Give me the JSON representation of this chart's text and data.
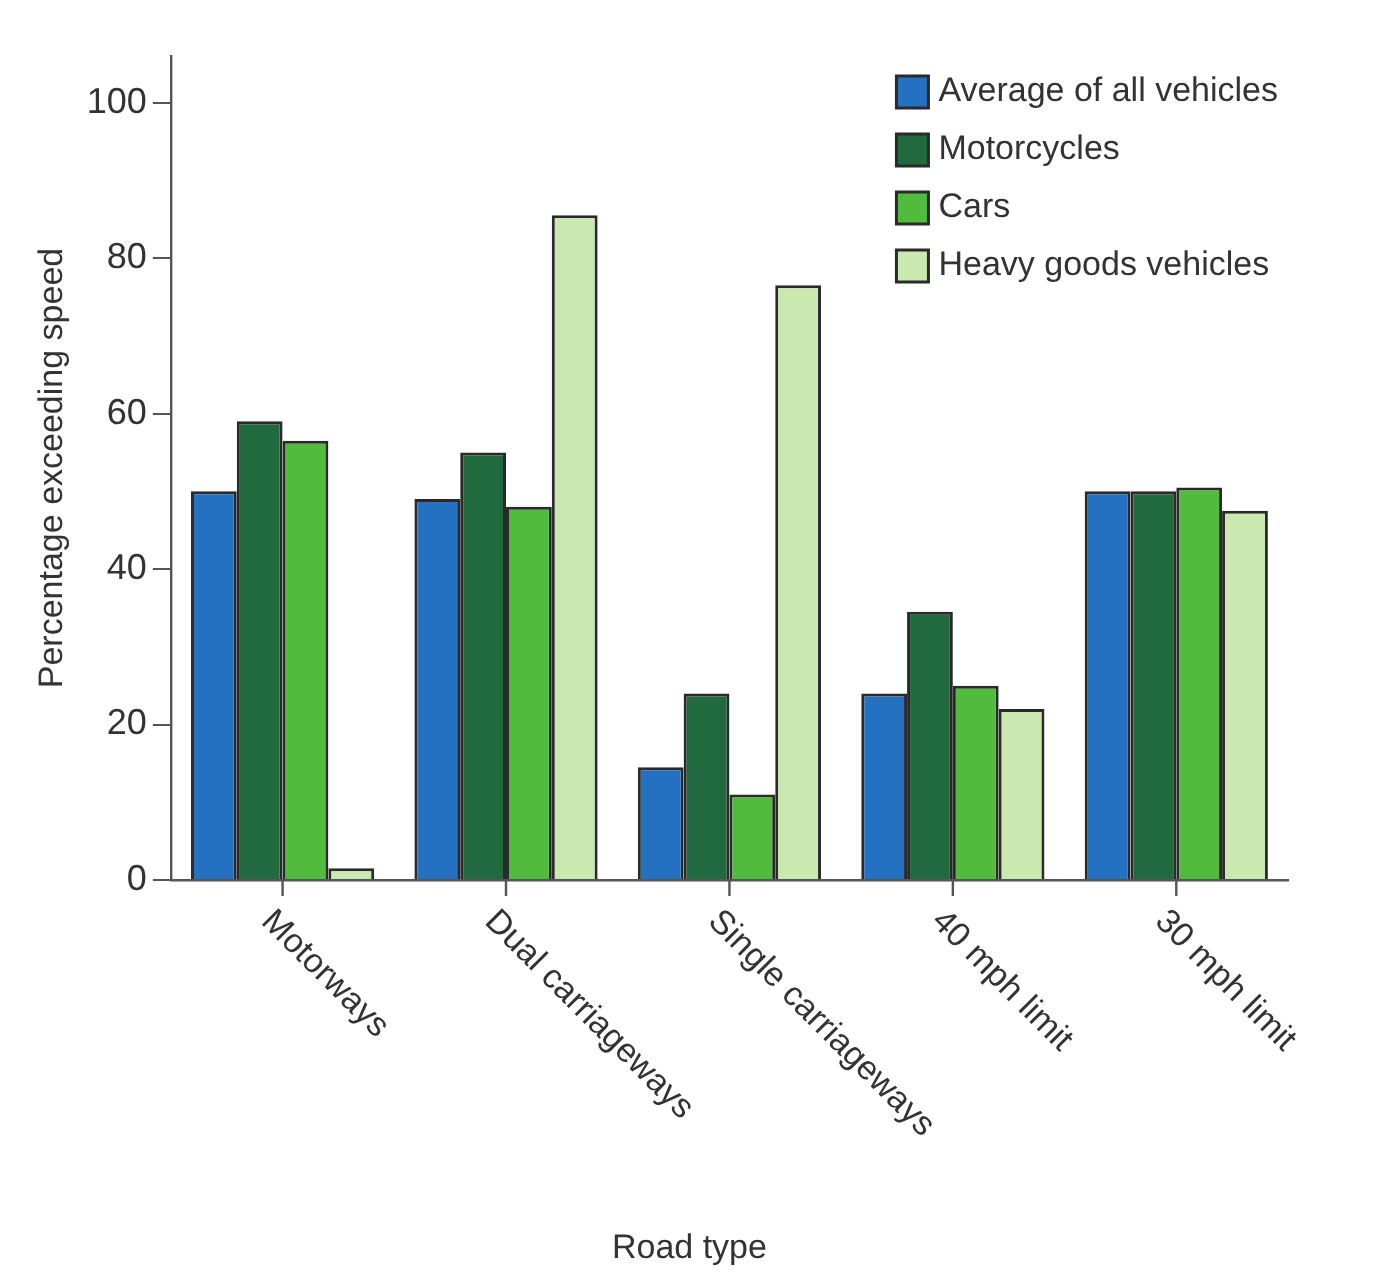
{
  "chart_data": {
    "type": "bar",
    "xlabel": "Road type",
    "ylabel": "Percentage exceeding speed",
    "categories": [
      "Motorways",
      "Dual carriageways",
      "Single carriageways",
      "40 mph limit",
      "30 mph limit"
    ],
    "series": [
      {
        "name": "Average of all vehicles",
        "color": "#2471c1",
        "values": [
          50,
          49,
          14.5,
          24,
          50
        ]
      },
      {
        "name": "Motorcycles",
        "color": "#216a3f",
        "values": [
          59,
          55,
          24,
          34.5,
          50
        ]
      },
      {
        "name": "Cars",
        "color": "#50bb3c",
        "values": [
          56.5,
          48,
          11,
          25,
          50.5
        ]
      },
      {
        "name": "Heavy goods vehicles",
        "color": "#c9e9b0",
        "values": [
          1.5,
          85.5,
          76.5,
          22,
          47.5
        ]
      }
    ],
    "ylim": [
      0,
      106
    ],
    "yticks": [
      0,
      20,
      40,
      60,
      80,
      100
    ],
    "grid": false,
    "legend": "top right"
  }
}
